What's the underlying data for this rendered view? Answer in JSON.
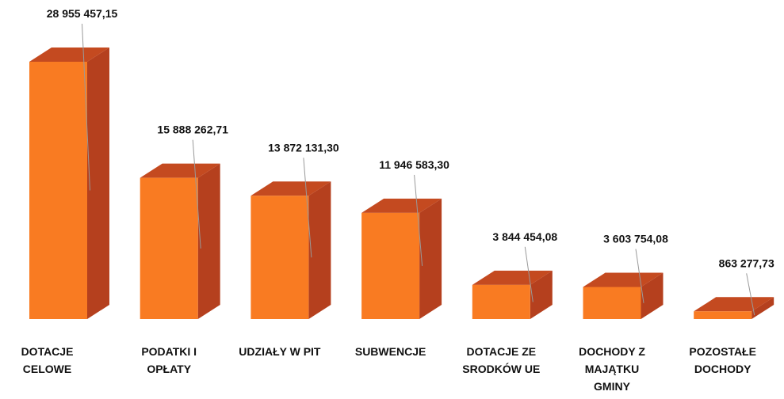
{
  "chart_data": {
    "type": "bar3d",
    "categories": [
      "DOTACJE CELOWE",
      "PODATKI I OPŁATY",
      "UDZIAŁY W PIT",
      "SUBWENCJE",
      "DOTACJE ZE SRODKÓW UE",
      "DOCHODY Z MAJĄTKU GMINY",
      "POZOSTAŁE DOCHODY"
    ],
    "values": [
      28955457.15,
      15888262.71,
      13872131.3,
      11946583.3,
      3844454.08,
      3603754.08,
      863277.73
    ],
    "value_labels": [
      "28 955 457,15",
      "15 888 262,71",
      "13 872 131,30",
      "11 946 583,30",
      "3 844 454,08",
      "3 603 754,08",
      "863 277,73"
    ],
    "color": "#f97b22"
  }
}
